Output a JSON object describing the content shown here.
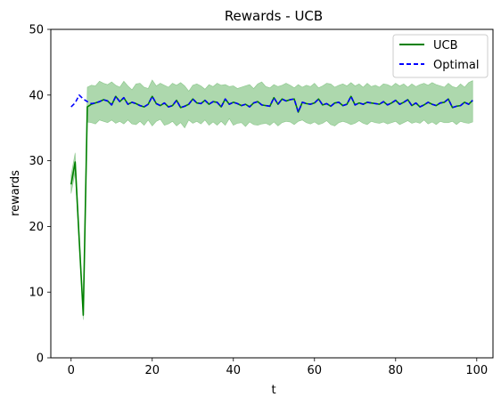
{
  "chart_data": {
    "type": "line",
    "title": "Rewards - UCB",
    "xlabel": "t",
    "ylabel": "rewards",
    "xlim": [
      -5,
      104
    ],
    "ylim": [
      0,
      50
    ],
    "xticks": [
      0,
      20,
      40,
      60,
      80,
      100
    ],
    "yticks": [
      0,
      10,
      20,
      30,
      40,
      50
    ],
    "legend_position": "top-right",
    "grid": false,
    "series": [
      {
        "name": "UCB",
        "style": "solid",
        "color": "#008000",
        "band_color": "#4aa84a",
        "x": [
          0,
          1,
          2,
          3,
          4,
          5,
          6,
          7,
          8,
          9,
          10,
          11,
          12,
          13,
          14,
          15,
          16,
          17,
          18,
          19,
          20,
          21,
          22,
          23,
          24,
          25,
          26,
          27,
          28,
          29,
          30,
          31,
          32,
          33,
          34,
          35,
          36,
          37,
          38,
          39,
          40,
          41,
          42,
          43,
          44,
          45,
          46,
          47,
          48,
          49,
          50,
          51,
          52,
          53,
          54,
          55,
          56,
          57,
          58,
          59,
          60,
          61,
          62,
          63,
          64,
          65,
          66,
          67,
          68,
          69,
          70,
          71,
          72,
          73,
          74,
          75,
          76,
          77,
          78,
          79,
          80,
          81,
          82,
          83,
          84,
          85,
          86,
          87,
          88,
          89,
          90,
          91,
          92,
          93,
          94,
          95,
          96,
          97,
          98,
          99
        ],
        "values": [
          26.4,
          29.8,
          18.0,
          6.5,
          38.2,
          38.6,
          38.8,
          39.0,
          39.3,
          39.1,
          38.5,
          39.8,
          39.0,
          39.6,
          38.6,
          38.9,
          38.7,
          38.4,
          38.2,
          38.6,
          39.8,
          38.7,
          38.4,
          38.8,
          38.2,
          38.4,
          39.2,
          38.1,
          38.3,
          38.6,
          39.4,
          38.8,
          38.7,
          39.2,
          38.6,
          39.0,
          38.9,
          38.2,
          39.4,
          38.6,
          38.9,
          38.7,
          38.4,
          38.6,
          38.2,
          38.8,
          39.0,
          38.5,
          38.4,
          38.3,
          39.6,
          38.6,
          39.4,
          39.1,
          39.3,
          39.4,
          37.4,
          38.9,
          38.7,
          38.6,
          38.8,
          39.4,
          38.5,
          38.7,
          38.3,
          38.8,
          38.9,
          38.4,
          38.6,
          39.8,
          38.5,
          38.8,
          38.6,
          38.9,
          38.8,
          38.7,
          38.6,
          39.0,
          38.5,
          38.8,
          39.2,
          38.6,
          38.9,
          39.3,
          38.4,
          38.8,
          38.2,
          38.5,
          38.9,
          38.6,
          38.4,
          38.8,
          38.9,
          39.4,
          38.1,
          38.3,
          38.4,
          38.9,
          38.6,
          39.2
        ],
        "lower": [
          25.0,
          28.2,
          17.2,
          5.8,
          35.9,
          35.8,
          35.6,
          36.2,
          36.0,
          35.8,
          36.2,
          35.7,
          36.0,
          35.6,
          36.2,
          35.6,
          35.5,
          36.0,
          35.4,
          36.2,
          35.3,
          36.0,
          36.3,
          35.4,
          35.6,
          36.0,
          35.3,
          35.8,
          35.0,
          36.2,
          35.7,
          36.0,
          35.6,
          36.2,
          35.4,
          35.9,
          35.4,
          36.0,
          35.4,
          36.4,
          35.4,
          35.7,
          35.8,
          35.2,
          35.9,
          35.5,
          35.4,
          35.6,
          35.7,
          35.4,
          35.9,
          35.3,
          35.8,
          36.0,
          35.9,
          35.5,
          36.0,
          36.2,
          35.8,
          35.6,
          35.9,
          35.5,
          35.7,
          36.1,
          35.5,
          35.3,
          35.8,
          36.0,
          35.8,
          35.5,
          35.7,
          36.1,
          35.7,
          35.5,
          36.0,
          35.8,
          35.7,
          35.9,
          35.6,
          35.8,
          36.0,
          35.5,
          35.8,
          36.1,
          35.7,
          35.9,
          35.7,
          36.2,
          35.6,
          35.9,
          35.5,
          36.0,
          35.8,
          35.8,
          36.0,
          35.5,
          36.0,
          35.8,
          35.7,
          35.9
        ],
        "upper": [
          27.8,
          31.2,
          18.9,
          7.2,
          41.2,
          41.5,
          41.4,
          42.1,
          41.8,
          41.6,
          42.0,
          41.5,
          41.2,
          42.1,
          41.4,
          40.8,
          41.7,
          41.8,
          41.2,
          41.0,
          42.3,
          41.4,
          41.8,
          41.5,
          41.2,
          41.8,
          41.5,
          41.9,
          41.4,
          40.6,
          41.5,
          41.7,
          41.4,
          40.9,
          41.6,
          41.3,
          41.8,
          41.5,
          41.6,
          41.3,
          41.4,
          41.0,
          41.2,
          41.4,
          41.6,
          41.0,
          41.7,
          42.0,
          41.3,
          41.1,
          41.6,
          41.3,
          41.5,
          41.8,
          41.5,
          41.1,
          41.6,
          41.2,
          41.5,
          41.3,
          41.8,
          41.1,
          41.4,
          41.8,
          41.7,
          41.2,
          41.5,
          41.7,
          41.4,
          41.9,
          41.4,
          41.7,
          41.2,
          41.8,
          41.3,
          41.5,
          41.2,
          41.7,
          41.6,
          41.3,
          41.8,
          41.4,
          41.7,
          41.2,
          41.7,
          41.3,
          41.6,
          41.8,
          41.5,
          41.9,
          41.6,
          41.4,
          41.2,
          41.8,
          41.3,
          41.1,
          41.7,
          41.2,
          41.9,
          42.2
        ]
      },
      {
        "name": "Optimal",
        "style": "dashed",
        "color": "#0000ff",
        "x": [
          0,
          1,
          2,
          3,
          4,
          5,
          6,
          7,
          8,
          9,
          10,
          11,
          12,
          13,
          14,
          15,
          16,
          17,
          18,
          19,
          20,
          21,
          22,
          23,
          24,
          25,
          26,
          27,
          28,
          29,
          30,
          31,
          32,
          33,
          34,
          35,
          36,
          37,
          38,
          39,
          40,
          41,
          42,
          43,
          44,
          45,
          46,
          47,
          48,
          49,
          50,
          51,
          52,
          53,
          54,
          55,
          56,
          57,
          58,
          59,
          60,
          61,
          62,
          63,
          64,
          65,
          66,
          67,
          68,
          69,
          70,
          71,
          72,
          73,
          74,
          75,
          76,
          77,
          78,
          79,
          80,
          81,
          82,
          83,
          84,
          85,
          86,
          87,
          88,
          89,
          90,
          91,
          92,
          93,
          94,
          95,
          96,
          97,
          98,
          99
        ],
        "values": [
          38.2,
          38.8,
          40.0,
          39.4,
          39.0,
          38.7,
          38.8,
          39.0,
          39.3,
          39.1,
          38.5,
          39.8,
          39.0,
          39.6,
          38.6,
          38.9,
          38.7,
          38.4,
          38.2,
          38.6,
          39.8,
          38.7,
          38.4,
          38.8,
          38.2,
          38.4,
          39.2,
          38.1,
          38.3,
          38.6,
          39.4,
          38.8,
          38.7,
          39.2,
          38.6,
          39.0,
          38.9,
          38.2,
          39.4,
          38.6,
          38.9,
          38.7,
          38.4,
          38.6,
          38.2,
          38.8,
          39.0,
          38.5,
          38.4,
          38.3,
          39.6,
          38.6,
          39.4,
          39.1,
          39.3,
          39.4,
          37.4,
          38.9,
          38.7,
          38.6,
          38.8,
          39.4,
          38.5,
          38.7,
          38.3,
          38.8,
          38.9,
          38.4,
          38.6,
          39.8,
          38.5,
          38.8,
          38.6,
          38.9,
          38.8,
          38.7,
          38.6,
          39.0,
          38.5,
          38.8,
          39.2,
          38.6,
          38.9,
          39.3,
          38.4,
          38.8,
          38.2,
          38.5,
          38.9,
          38.6,
          38.4,
          38.8,
          38.9,
          39.4,
          38.1,
          38.3,
          38.4,
          38.9,
          38.6,
          39.2
        ]
      }
    ]
  }
}
